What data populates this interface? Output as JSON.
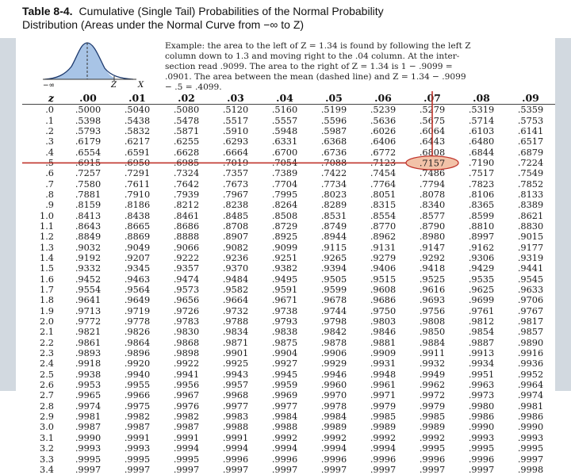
{
  "title": {
    "label": "Table 8-4.",
    "line1": "Cumulative (Single Tail) Probabilities of the Normal Probability",
    "line2": "Distribution (Areas under the Normal Curve from −∞ to Z)"
  },
  "figure": {
    "left_label": "−∞",
    "z_label": "Z",
    "x_label": "X"
  },
  "example_text": "Example: the area to the left of Z = 1.34 is found by following the left Z\ncolumn down to 1.3 and moving right to the .04 column. At the inter-\nsection read .9099. The area to the right of Z = 1.34 is 1 − .9099 =\n.0901. The area between the mean (dashed line) and Z = 1.34 − .9099\n− .5 = .4099.",
  "table": {
    "headers": [
      "z",
      ".00",
      ".01",
      ".02",
      ".03",
      ".04",
      ".05",
      ".06",
      ".07",
      ".08",
      ".09"
    ],
    "rows": [
      [
        ".0",
        ".5000",
        ".5040",
        ".5080",
        ".5120",
        ".5160",
        ".5199",
        ".5239",
        ".5279",
        ".5319",
        ".5359"
      ],
      [
        ".1",
        ".5398",
        ".5438",
        ".5478",
        ".5517",
        ".5557",
        ".5596",
        ".5636",
        ".5675",
        ".5714",
        ".5753"
      ],
      [
        ".2",
        ".5793",
        ".5832",
        ".5871",
        ".5910",
        ".5948",
        ".5987",
        ".6026",
        ".6064",
        ".6103",
        ".6141"
      ],
      [
        ".3",
        ".6179",
        ".6217",
        ".6255",
        ".6293",
        ".6331",
        ".6368",
        ".6406",
        ".6443",
        ".6480",
        ".6517"
      ],
      [
        ".4",
        ".6554",
        ".6591",
        ".6628",
        ".6664",
        ".6700",
        ".6736",
        ".6772",
        ".6808",
        ".6844",
        ".6879"
      ],
      [
        ".5",
        ".6915",
        ".6950",
        ".6985",
        ".7019",
        ".7054",
        ".7088",
        ".7123",
        ".7157",
        ".7190",
        ".7224"
      ],
      [
        ".6",
        ".7257",
        ".7291",
        ".7324",
        ".7357",
        ".7389",
        ".7422",
        ".7454",
        ".7486",
        ".7517",
        ".7549"
      ],
      [
        ".7",
        ".7580",
        ".7611",
        ".7642",
        ".7673",
        ".7704",
        ".7734",
        ".7764",
        ".7794",
        ".7823",
        ".7852"
      ],
      [
        ".8",
        ".7881",
        ".7910",
        ".7939",
        ".7967",
        ".7995",
        ".8023",
        ".8051",
        ".8078",
        ".8106",
        ".8133"
      ],
      [
        ".9",
        ".8159",
        ".8186",
        ".8212",
        ".8238",
        ".8264",
        ".8289",
        ".8315",
        ".8340",
        ".8365",
        ".8389"
      ],
      [
        "1.0",
        ".8413",
        ".8438",
        ".8461",
        ".8485",
        ".8508",
        ".8531",
        ".8554",
        ".8577",
        ".8599",
        ".8621"
      ],
      [
        "1.1",
        ".8643",
        ".8665",
        ".8686",
        ".8708",
        ".8729",
        ".8749",
        ".8770",
        ".8790",
        ".8810",
        ".8830"
      ],
      [
        "1.2",
        ".8849",
        ".8869",
        ".8888",
        ".8907",
        ".8925",
        ".8944",
        ".8962",
        ".8980",
        ".8997",
        ".9015"
      ],
      [
        "1.3",
        ".9032",
        ".9049",
        ".9066",
        ".9082",
        ".9099",
        ".9115",
        ".9131",
        ".9147",
        ".9162",
        ".9177"
      ],
      [
        "1.4",
        ".9192",
        ".9207",
        ".9222",
        ".9236",
        ".9251",
        ".9265",
        ".9279",
        ".9292",
        ".9306",
        ".9319"
      ],
      [
        "1.5",
        ".9332",
        ".9345",
        ".9357",
        ".9370",
        ".9382",
        ".9394",
        ".9406",
        ".9418",
        ".9429",
        ".9441"
      ],
      [
        "1.6",
        ".9452",
        ".9463",
        ".9474",
        ".9484",
        ".9495",
        ".9505",
        ".9515",
        ".9525",
        ".9535",
        ".9545"
      ],
      [
        "1.7",
        ".9554",
        ".9564",
        ".9573",
        ".9582",
        ".9591",
        ".9599",
        ".9608",
        ".9616",
        ".9625",
        ".9633"
      ],
      [
        "1.8",
        ".9641",
        ".9649",
        ".9656",
        ".9664",
        ".9671",
        ".9678",
        ".9686",
        ".9693",
        ".9699",
        ".9706"
      ],
      [
        "1.9",
        ".9713",
        ".9719",
        ".9726",
        ".9732",
        ".9738",
        ".9744",
        ".9750",
        ".9756",
        ".9761",
        ".9767"
      ],
      [
        "2.0",
        ".9772",
        ".9778",
        ".9783",
        ".9788",
        ".9793",
        ".9798",
        ".9803",
        ".9808",
        ".9812",
        ".9817"
      ],
      [
        "2.1",
        ".9821",
        ".9826",
        ".9830",
        ".9834",
        ".9838",
        ".9842",
        ".9846",
        ".9850",
        ".9854",
        ".9857"
      ],
      [
        "2.2",
        ".9861",
        ".9864",
        ".9868",
        ".9871",
        ".9875",
        ".9878",
        ".9881",
        ".9884",
        ".9887",
        ".9890"
      ],
      [
        "2.3",
        ".9893",
        ".9896",
        ".9898",
        ".9901",
        ".9904",
        ".9906",
        ".9909",
        ".9911",
        ".9913",
        ".9916"
      ],
      [
        "2.4",
        ".9918",
        ".9920",
        ".9922",
        ".9925",
        ".9927",
        ".9929",
        ".9931",
        ".9932",
        ".9934",
        ".9936"
      ],
      [
        "2.5",
        ".9938",
        ".9940",
        ".9941",
        ".9943",
        ".9945",
        ".9946",
        ".9948",
        ".9949",
        ".9951",
        ".9952"
      ],
      [
        "2.6",
        ".9953",
        ".9955",
        ".9956",
        ".9957",
        ".9959",
        ".9960",
        ".9961",
        ".9962",
        ".9963",
        ".9964"
      ],
      [
        "2.7",
        ".9965",
        ".9966",
        ".9967",
        ".9968",
        ".9969",
        ".9970",
        ".9971",
        ".9972",
        ".9973",
        ".9974"
      ],
      [
        "2.8",
        ".9974",
        ".9975",
        ".9976",
        ".9977",
        ".9977",
        ".9978",
        ".9979",
        ".9979",
        ".9980",
        ".9981"
      ],
      [
        "2.9",
        ".9981",
        ".9982",
        ".9982",
        ".9983",
        ".9984",
        ".9984",
        ".9985",
        ".9985",
        ".9986",
        ".9986"
      ],
      [
        "3.0",
        ".9987",
        ".9987",
        ".9987",
        ".9988",
        ".9988",
        ".9989",
        ".9989",
        ".9989",
        ".9990",
        ".9990"
      ],
      [
        "3.1",
        ".9990",
        ".9991",
        ".9991",
        ".9991",
        ".9992",
        ".9992",
        ".9992",
        ".9992",
        ".9993",
        ".9993"
      ],
      [
        "3.2",
        ".9993",
        ".9993",
        ".9994",
        ".9994",
        ".9994",
        ".9994",
        ".9994",
        ".9995",
        ".9995",
        ".9995"
      ],
      [
        "3.3",
        ".9995",
        ".9995",
        ".9995",
        ".9996",
        ".9996",
        ".9996",
        ".9996",
        ".9996",
        ".9996",
        ".9997"
      ],
      [
        "3.4",
        ".9997",
        ".9997",
        ".9997",
        ".9997",
        ".9997",
        ".9997",
        ".9997",
        ".9997",
        ".9997",
        ".9998"
      ]
    ],
    "highlight_row": 5,
    "highlight_col": 8,
    "highlight_color": "#c0342b",
    "highlight_fill": "#f2c2a8"
  }
}
